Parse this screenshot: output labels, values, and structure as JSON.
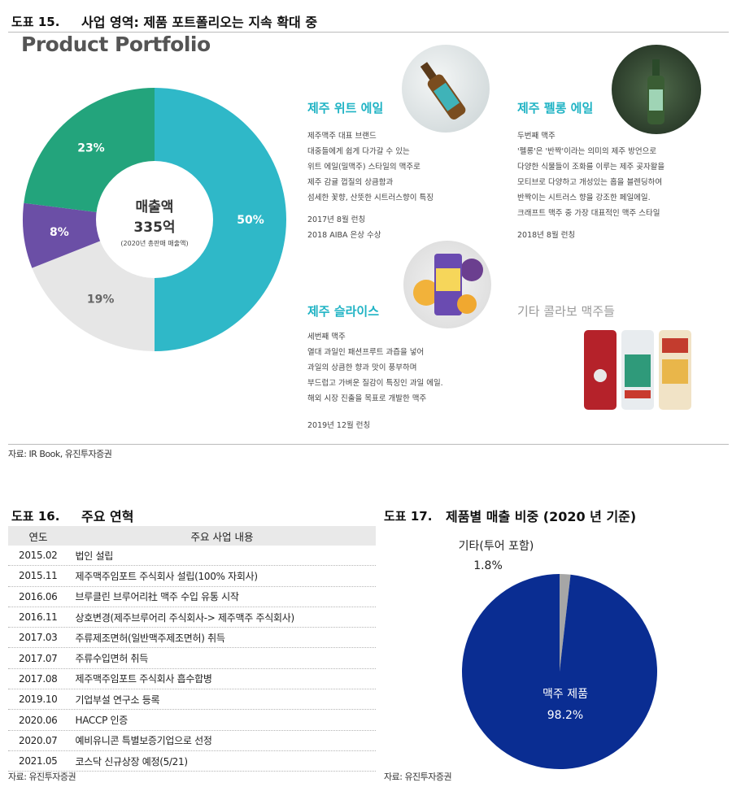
{
  "fig15": {
    "label": "도표 15.",
    "title": "사업 영역: 제품 포트폴리오는 지속 확대 중",
    "source": "자료: IR Book, 유진투자증권",
    "brand_title": "Product Portfolio",
    "donut": {
      "center_line1": "매출액",
      "center_line2": "335억",
      "center_line3": "(2020년 총판매 매출액)",
      "chart_data": {
        "type": "pie",
        "values": [
          50,
          19,
          8,
          23
        ],
        "labels": [
          "50%",
          "19%",
          "8%",
          "23%"
        ],
        "colors": [
          "#2fb8c8",
          "#e6e6e6",
          "#6b4fa6",
          "#23a47c"
        ]
      }
    },
    "products": [
      {
        "name": "제주 위트 에일",
        "lines": [
          "제주맥주 대표 브랜드",
          "대중들에게 쉽게 다가갈 수 있는",
          "위트 에일(밀맥주) 스타일의 맥주로",
          "제주 감귤 껍질의 상큼함과",
          "섬세한 꽃향, 산뜻한 시트러스향이 특징"
        ],
        "dates": [
          "2017년 8월 런칭",
          "2018 AIBA 은상 수상"
        ]
      },
      {
        "name": "제주 펠롱 에일",
        "lines": [
          "두번째 맥주",
          "'펠롱'은 '반짝'이라는 의미의 제주 방언으로",
          "다양한 식물들이 조화를 이루는 제주 곶자왈을",
          "모티브로 다양하고 개성있는 홉을 블렌딩하여",
          "반짝이는 시트러스 향을 강조한 페일에일.",
          "크래프트 맥주 중 가장 대표적인 맥주 스타일"
        ],
        "dates": [
          "2018년 8월 런칭"
        ]
      },
      {
        "name": "제주 슬라이스",
        "lines": [
          "세번째 맥주",
          "열대 과일인 패션프루트 과즙을 넣어",
          "과일의 상큼한 향과 맛이 풍부하며",
          "부드럽고 가벼운 질감이 특징인 과일 에일.",
          "해외 시장 진출을 목표로 개발한 맥주"
        ],
        "dates": [
          "2019년 12월 런칭"
        ]
      },
      {
        "name": "기타 콜라보 맥주들",
        "lines": [],
        "dates": []
      }
    ]
  },
  "fig16": {
    "label": "도표 16.",
    "title": "주요 연혁",
    "source": "자료: 유진투자증권",
    "headers": [
      "연도",
      "주요 사업 내용"
    ],
    "rows": [
      [
        "2015.02",
        "법인 설립"
      ],
      [
        "2015.11",
        "제주맥주임포트 주식회사 설립(100% 자회사)"
      ],
      [
        "2016.06",
        "브루클린 브루어리社 맥주 수입 유통 시작"
      ],
      [
        "2016.11",
        "상호변경(제주브루어리 주식회사-> 제주맥주 주식회사)"
      ],
      [
        "2017.03",
        "주류제조면허(일반맥주제조면허) 취득"
      ],
      [
        "2017.07",
        "주류수입면허 취득"
      ],
      [
        "2017.08",
        "제주맥주임포트 주식회사 흡수합병"
      ],
      [
        "2019.10",
        "기업부설 연구소 등록"
      ],
      [
        "2020.06",
        "HACCP 인증"
      ],
      [
        "2020.07",
        "예비유니콘 특별보증기업으로 선정"
      ],
      [
        "2021.05",
        "코스닥 신규상장 예정(5/21)"
      ]
    ]
  },
  "fig17": {
    "label": "도표 17.",
    "title": "제품별 매출 비중 (2020 년 기준)",
    "source": "자료: 유진투자증권",
    "chart_data": {
      "type": "pie",
      "categories": [
        "기타(투어 포함)",
        "맥주 제품"
      ],
      "values": [
        1.8,
        98.2
      ],
      "value_labels": [
        "1.8%",
        "98.2%"
      ],
      "colors": [
        "#a6a6a6",
        "#0a2d92"
      ]
    }
  }
}
